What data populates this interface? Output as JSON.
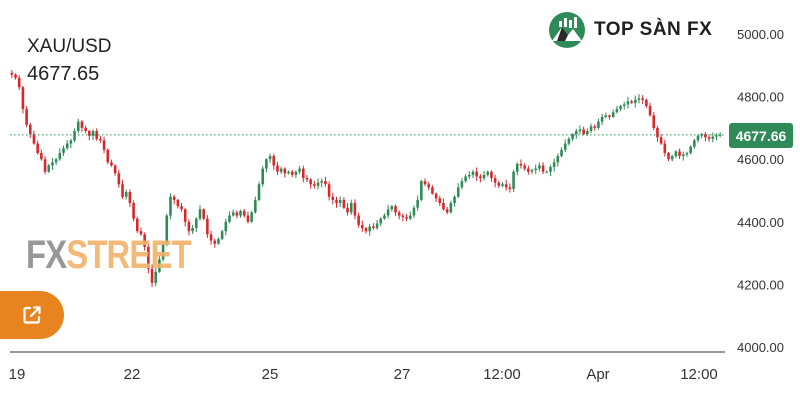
{
  "header": {
    "symbol": "XAU/USD",
    "last_price": "4677.65"
  },
  "brand": {
    "name": "TOP SÀN FX",
    "icon": "chart-mountain-logo-icon",
    "color": "#2e8b57"
  },
  "watermark": {
    "part1": "FX",
    "part2": "STREET"
  },
  "share_button": {
    "icon": "external-link-icon",
    "color": "#e8841f"
  },
  "price_badge": {
    "label": "4677.66",
    "color": "#2e8b57"
  },
  "chart_data": {
    "type": "candlestick",
    "title": "XAU/USD",
    "xlabel": "",
    "ylabel": "",
    "ylim": [
      4000,
      5000
    ],
    "y_ticks": [
      "5000.00",
      "4800.00",
      "4600.00",
      "4400.00",
      "4200.00",
      "4000.00"
    ],
    "x_ticks": [
      "19",
      "22",
      "25",
      "27",
      "12:00",
      "Apr",
      "12:00"
    ],
    "current_price": 4677.66,
    "grid": false,
    "colors": {
      "up": "#2e8b57",
      "down": "#d9262b"
    },
    "close_series": [
      4870,
      4860,
      4830,
      4760,
      4710,
      4680,
      4650,
      4620,
      4600,
      4560,
      4580,
      4590,
      4600,
      4620,
      4635,
      4650,
      4660,
      4690,
      4720,
      4700,
      4690,
      4675,
      4690,
      4665,
      4660,
      4630,
      4590,
      4580,
      4555,
      4520,
      4480,
      4495,
      4460,
      4410,
      4370,
      4360,
      4320,
      4250,
      4205,
      4240,
      4280,
      4330,
      4420,
      4480,
      4470,
      4450,
      4440,
      4400,
      4370,
      4380,
      4410,
      4440,
      4410,
      4360,
      4340,
      4330,
      4345,
      4370,
      4400,
      4420,
      4430,
      4420,
      4435,
      4420,
      4400,
      4430,
      4470,
      4520,
      4570,
      4600,
      4610,
      4580,
      4560,
      4570,
      4555,
      4560,
      4550,
      4560,
      4570,
      4540,
      4535,
      4520,
      4515,
      4525,
      4530,
      4520,
      4480,
      4470,
      4460,
      4470,
      4445,
      4430,
      4460,
      4420,
      4390,
      4380,
      4370,
      4385,
      4380,
      4395,
      4410,
      4420,
      4440,
      4450,
      4430,
      4420,
      4415,
      4410,
      4420,
      4445,
      4470,
      4530,
      4520,
      4510,
      4490,
      4475,
      4460,
      4440,
      4430,
      4460,
      4480,
      4510,
      4530,
      4545,
      4550,
      4560,
      4545,
      4540,
      4550,
      4560,
      4540,
      4525,
      4515,
      4520,
      4510,
      4505,
      4560,
      4585,
      4580,
      4570,
      4560,
      4565,
      4570,
      4580,
      4560,
      4560,
      4575,
      4590,
      4610,
      4630,
      4650,
      4665,
      4680,
      4690,
      4695,
      4680,
      4690,
      4705,
      4700,
      4720,
      4735,
      4740,
      4735,
      4750,
      4760,
      4770,
      4775,
      4785,
      4780,
      4790,
      4795,
      4790,
      4770,
      4740,
      4700,
      4670,
      4650,
      4620,
      4600,
      4610,
      4625,
      4610,
      4615,
      4620,
      4640,
      4660,
      4675,
      4680,
      4670,
      4665,
      4672,
      4676,
      4677.66
    ]
  }
}
